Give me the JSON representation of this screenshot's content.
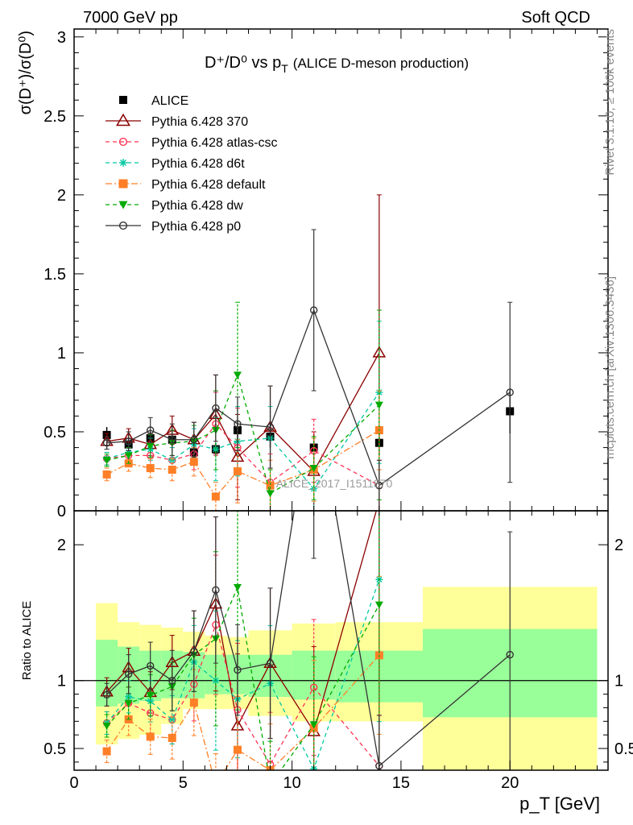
{
  "header": {
    "left": "7000 GeV pp",
    "right": "Soft QCD"
  },
  "side_text": {
    "rivet": "Rivet 3.1.10, ≥ 100k events",
    "mcplots": "mcplots.cern.ch [arXiv:1306.3436]"
  },
  "watermark": "ALICE_2017_I1511870",
  "chart_data": {
    "type": "scatter",
    "title_main": "D⁺/D⁰ vs p",
    "title_sub": "T",
    "title_extra": "(ALICE D-meson production)",
    "xlabel": "p_T [GeV]",
    "ylabel": "σ(D⁺)/σ(D⁰)",
    "ratio_ylabel": "Ratio to ALICE",
    "xlim": [
      0,
      24.5
    ],
    "ylim": [
      0,
      3.05
    ],
    "ratio_ylim": [
      0.34,
      2.25
    ],
    "x_ticks": [
      0,
      5,
      10,
      15,
      20
    ],
    "y_ticks": [
      0,
      0.5,
      1,
      1.5,
      2,
      2.5,
      3
    ],
    "ratio_ticks": [
      0.5,
      1,
      2
    ],
    "legend_position": "top-left",
    "bins": [
      {
        "lo": 1,
        "hi": 2,
        "x": 1.5
      },
      {
        "lo": 2,
        "hi": 3,
        "x": 2.5
      },
      {
        "lo": 3,
        "hi": 4,
        "x": 3.5
      },
      {
        "lo": 4,
        "hi": 5,
        "x": 4.5
      },
      {
        "lo": 5,
        "hi": 6,
        "x": 5.5
      },
      {
        "lo": 6,
        "hi": 7,
        "x": 6.5
      },
      {
        "lo": 7,
        "hi": 8,
        "x": 7.5
      },
      {
        "lo": 8,
        "hi": 10,
        "x": 9
      },
      {
        "lo": 10,
        "hi": 12,
        "x": 11
      },
      {
        "lo": 12,
        "hi": 16,
        "x": 14
      },
      {
        "lo": 16,
        "hi": 24,
        "x": 20
      }
    ],
    "band_stat": [
      [
        0.81,
        1.3
      ],
      [
        0.83,
        1.25
      ],
      [
        0.85,
        1.22
      ],
      [
        0.87,
        1.22
      ],
      [
        0.87,
        1.21
      ],
      [
        0.9,
        1.19
      ],
      [
        0.9,
        1.19
      ],
      [
        0.88,
        1.19
      ],
      [
        0.86,
        1.22
      ],
      [
        0.84,
        1.22
      ],
      [
        0.73,
        1.38
      ]
    ],
    "band_total": [
      [
        0.53,
        1.57
      ],
      [
        0.57,
        1.43
      ],
      [
        0.6,
        1.41
      ],
      [
        0.68,
        1.39
      ],
      [
        0.79,
        1.36
      ],
      [
        0.79,
        1.33
      ],
      [
        0.79,
        1.32
      ],
      [
        0.74,
        1.37
      ],
      [
        0.7,
        1.42
      ],
      [
        0.7,
        1.43
      ],
      [
        0.33,
        1.69
      ]
    ],
    "data": {
      "name": "ALICE",
      "values": [
        0.48,
        0.42,
        0.46,
        0.45,
        0.37,
        0.39,
        0.51,
        0.47,
        0.4,
        0.43,
        0.63
      ],
      "errors": [
        0.05,
        0.04,
        0.04,
        0.04,
        0.04,
        0.04,
        0.06,
        0.07,
        0.08,
        0.08,
        0.14
      ]
    },
    "series": [
      {
        "name": "Pythia 6.428 370",
        "color": "#8b0000",
        "dash": "",
        "marker": "triangle-open",
        "values": [
          0.44,
          0.46,
          0.42,
          0.51,
          0.45,
          0.61,
          0.34,
          0.53,
          0.25,
          1.0,
          null
        ],
        "errors": [
          0.05,
          0.06,
          0.07,
          0.09,
          0.11,
          0.25,
          0.27,
          0.26,
          0.25,
          1.0,
          null
        ]
      },
      {
        "name": "Pythia 6.428 atlas-csc",
        "color": "#ff3355",
        "dash": "5,4",
        "marker": "circle-open",
        "values": [
          0.33,
          0.35,
          0.35,
          0.32,
          0.36,
          0.55,
          0.4,
          0.18,
          0.38,
          0.16,
          null
        ],
        "errors": [
          0.04,
          0.05,
          0.07,
          0.08,
          0.1,
          0.2,
          0.25,
          0.18,
          0.2,
          0.16,
          null
        ]
      },
      {
        "name": "Pythia 6.428 d6t",
        "color": "#00c8a0",
        "dash": "5,4",
        "marker": "star",
        "values": [
          0.33,
          0.37,
          0.39,
          0.32,
          0.42,
          0.39,
          0.44,
          0.46,
          0.14,
          0.75,
          null
        ],
        "errors": [
          0.04,
          0.05,
          0.07,
          0.08,
          0.1,
          0.2,
          0.22,
          0.2,
          0.14,
          0.45,
          null
        ]
      },
      {
        "name": "Pythia 6.428 default",
        "color": "#ff7f27",
        "dash": "8,3,2,3",
        "marker": "square",
        "values": [
          0.23,
          0.3,
          0.27,
          0.26,
          0.31,
          0.09,
          0.25,
          0.16,
          0.26,
          0.51,
          null
        ],
        "errors": [
          0.04,
          0.05,
          0.06,
          0.07,
          0.09,
          0.09,
          0.2,
          0.16,
          0.2,
          0.25,
          null
        ]
      },
      {
        "name": "Pythia 6.428 dw",
        "color": "#00aa00",
        "dash": "5,4",
        "marker": "triangle-down",
        "values": [
          0.32,
          0.35,
          0.41,
          0.43,
          0.44,
          0.51,
          0.86,
          0.11,
          0.27,
          0.67,
          null
        ],
        "errors": [
          0.04,
          0.05,
          0.07,
          0.08,
          0.1,
          0.25,
          0.46,
          0.15,
          0.2,
          0.6,
          null
        ]
      },
      {
        "name": "Pythia 6.428 p0",
        "color": "#333333",
        "dash": "",
        "marker": "circle-open",
        "values": [
          0.43,
          0.44,
          0.51,
          0.45,
          0.45,
          0.65,
          0.55,
          0.53,
          1.27,
          0.16,
          0.75
        ],
        "errors": [
          0.04,
          0.06,
          0.08,
          0.1,
          0.11,
          0.21,
          0.17,
          0.26,
          0.51,
          0.16,
          0.57
        ]
      }
    ]
  }
}
